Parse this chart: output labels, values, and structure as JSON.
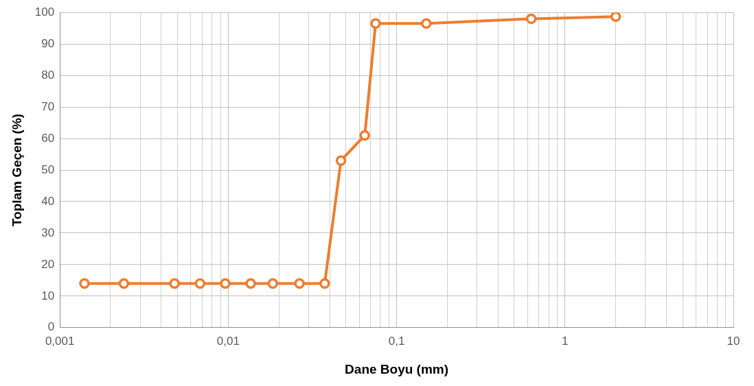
{
  "chart_data": {
    "type": "line",
    "xlabel": "Dane Boyu (mm)",
    "ylabel": "Toplam Geçen (%)",
    "x": [
      0.0014,
      0.0024,
      0.0048,
      0.0068,
      0.0096,
      0.0136,
      0.0184,
      0.0265,
      0.0374,
      0.0467,
      0.0647,
      0.075,
      0.15,
      0.63,
      2.0
    ],
    "series": [
      {
        "color": "#ed7d31",
        "values": [
          14,
          14,
          14,
          14,
          14,
          14,
          14,
          14,
          14,
          53,
          61,
          96.5,
          96.5,
          98,
          98.7
        ]
      }
    ],
    "log": "x",
    "xlim": [
      0.001,
      10
    ],
    "xticks": [
      {
        "value": 0.001,
        "label": "0,001"
      },
      {
        "value": 0.002,
        "label": null
      },
      {
        "value": 0.003,
        "label": null
      },
      {
        "value": 0.004,
        "label": null
      },
      {
        "value": 0.005,
        "label": null
      },
      {
        "value": 0.006,
        "label": null
      },
      {
        "value": 0.007,
        "label": null
      },
      {
        "value": 0.008,
        "label": null
      },
      {
        "value": 0.009,
        "label": null
      },
      {
        "value": 0.01,
        "label": "0,01"
      },
      {
        "value": 0.02,
        "label": null
      },
      {
        "value": 0.03,
        "label": null
      },
      {
        "value": 0.04,
        "label": null
      },
      {
        "value": 0.05,
        "label": null
      },
      {
        "value": 0.06,
        "label": null
      },
      {
        "value": 0.07,
        "label": null
      },
      {
        "value": 0.08,
        "label": null
      },
      {
        "value": 0.09,
        "label": null
      },
      {
        "value": 0.1,
        "label": "0,1"
      },
      {
        "value": 0.2,
        "label": null
      },
      {
        "value": 0.3,
        "label": null
      },
      {
        "value": 0.4,
        "label": null
      },
      {
        "value": 0.5,
        "label": null
      },
      {
        "value": 0.6,
        "label": null
      },
      {
        "value": 0.7,
        "label": null
      },
      {
        "value": 0.8,
        "label": null
      },
      {
        "value": 0.9,
        "label": null
      },
      {
        "value": 1,
        "label": "1"
      },
      {
        "value": 2,
        "label": null
      },
      {
        "value": 3,
        "label": null
      },
      {
        "value": 4,
        "label": null
      },
      {
        "value": 5,
        "label": null
      },
      {
        "value": 6,
        "label": null
      },
      {
        "value": 7,
        "label": null
      },
      {
        "value": 8,
        "label": null
      },
      {
        "value": 9,
        "label": null
      },
      {
        "value": 10,
        "label": "10"
      }
    ],
    "ylim": [
      0,
      100
    ],
    "yticks": [
      0,
      10,
      20,
      30,
      40,
      50,
      60,
      70,
      80,
      90,
      100
    ],
    "grid": true,
    "marker": "circle",
    "line_style": "solid",
    "legend": false
  }
}
